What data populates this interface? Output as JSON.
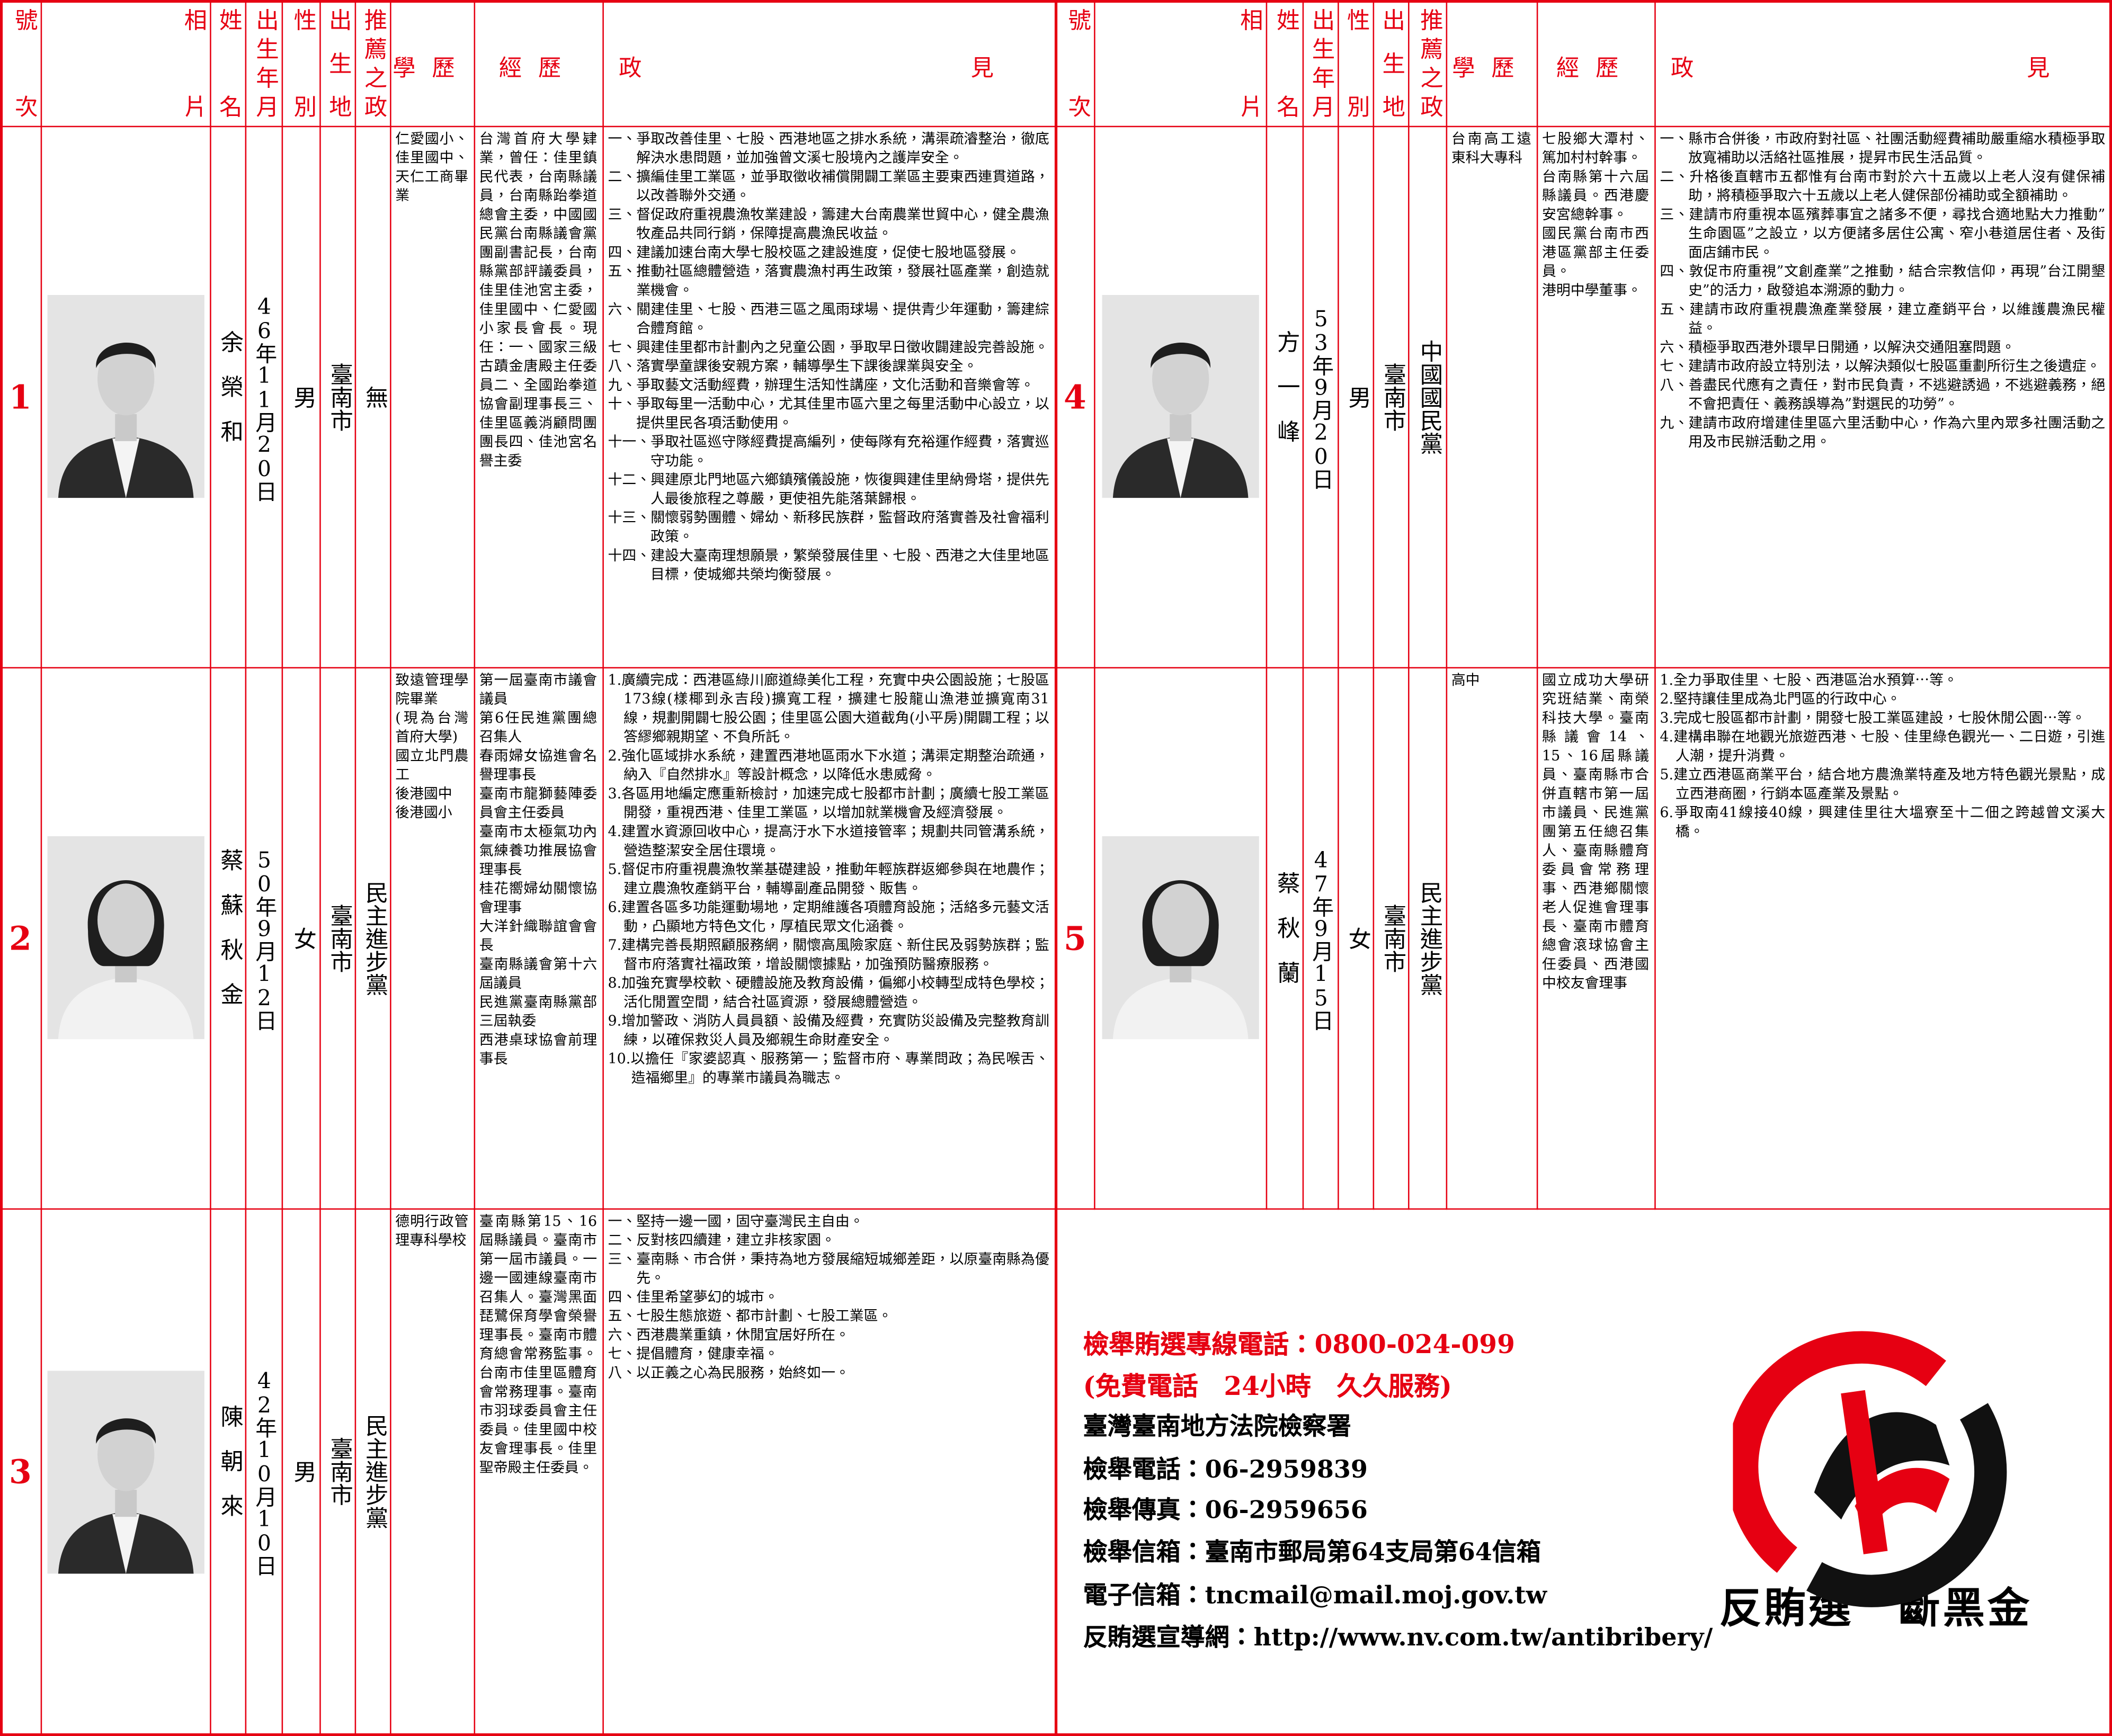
{
  "headers": [
    "號次",
    "相片",
    "姓名",
    "出生年月日",
    "性別",
    "出生地",
    "推薦之政黨",
    "學歷",
    "經歷",
    "政見"
  ],
  "candidates": [
    {
      "number": "1",
      "name": "余榮和",
      "birth": "46年11月20日",
      "gender": "男",
      "birthplace": "臺南市",
      "party": "無",
      "education": [
        "仁愛國小、佳里國中、天仁工商畢業"
      ],
      "experience": [
        "台灣首府大學肄業，曾任：佳里鎮民代表，台南縣議員，台南縣跆拳道總會主委，中國國民黨台南縣議會黨團副書記長，台南縣黨部評議委員，佳里佳池宮主委，佳里國中、仁愛國小家長會長。現任：一、國家三級古蹟金唐殿主任委員二、全國跆拳道協會副理事長三、佳里區義消顧問團團長四、佳池宮名譽主委"
      ],
      "platform": [
        "一、爭取改善佳里、七股、西港地區之排水系統，溝渠疏濬整治，徹底解決水患問題，並加強曾文溪七股境內之護岸安全。",
        "二、擴編佳里工業區，並爭取徵收補償開闢工業區主要東西連貫道路，以改善聯外交通。",
        "三、督促政府重視農漁牧業建設，籌建大台南農業世貿中心，健全農漁牧產品共同行銷，保障提高農漁民收益。",
        "四、建議加速台南大學七股校區之建設進度，促使七股地區發展。",
        "五、推動社區總體營造，落實農漁村再生政策，發展社區產業，創造就業機會。",
        "六、關建佳里、七股、西港三區之風雨球場、提供青少年運動，籌建綜合體育館。",
        "七、興建佳里都市計劃內之兒童公園，爭取早日徵收闢建設完善設施。",
        "八、落實學童課後安親方案，輔導學生下課後課業與安全。",
        "九、爭取藝文活動經費，辦理生活知性講座，文化活動和音樂會等。",
        "十、爭取每里一活動中心，尤其佳里市區六里之每里活動中心設立，以提供里民各項活動使用。",
        "十一、爭取社區巡守隊經費提高編列，使每隊有充裕運作經費，落實巡守功能。",
        "十二、興建原北門地區六鄉鎮殯儀設施，恢復興建佳里納骨塔，提供先人最後旅程之尊嚴，更使祖先能落葉歸根。",
        "十三、關懷弱勢團體、婦幼、新移民族群，監督政府落實善及社會福利政策。",
        "十四、建設大臺南理想願景，繁榮發展佳里、七股、西港之大佳里地區目標，使城鄉共榮均衡發展。"
      ]
    },
    {
      "number": "2",
      "name": "蔡蘇秋金",
      "birth": "50年9月12日",
      "gender": "女",
      "birthplace": "臺南市",
      "party": "民主進步黨",
      "education": [
        "致遠管理學院畢業",
        "(現為台灣首府大學)",
        "國立北門農工",
        "後港國中",
        "後港國小"
      ],
      "experience": [
        "第一屆臺南市議會議員",
        "第6任民進黨團總召集人",
        "春雨婦女協進會名譽理事長",
        "臺南市龍獅藝陣委員會主任委員",
        "臺南市太極氣功內氣練養功推展協會理事長",
        "桂花嚮婦幼關懷協會理事",
        "大洋針織聯誼會會長",
        "臺南縣議會第十六屆議員",
        "民進黨臺南縣黨部三屆執委",
        "西港桌球協會前理事長"
      ],
      "platform": [
        "1.廣續完成：西港區綠川廊道綠美化工程，充實中央公園設施；七股區173線(樣椰到永吉段)擴寬工程，擴建七股龍山漁港並擴寬南31線，規劃開闢七股公園；佳里區公園大道截角(小平房)開闢工程；以答繆鄉親期望、不負所託。",
        "2.強化區域排水系統，建置西港地區雨水下水道；溝渠定期整治疏通，納入『自然排水』等設計概念，以降低水患威脅。",
        "3.各區用地編定應重新檢討，加速完成七股都市計劃；廣續七股工業區開發，重視西港、佳里工業區，以增加就業機會及經濟發展。",
        "4.建置水資源回收中心，提高汙水下水道接管率；規劃共同管溝系統，營造整潔安全居住環境。",
        "5.督促市府重視農漁牧業基礎建設，推動年輕族群返鄉參與在地農作；建立農漁牧產銷平台，輔導副產品開發、販售。",
        "6.建置各區多功能運動場地，定期維護各項體育設施；活絡多元藝文活動，凸顯地方特色文化，厚植民眾文化涵養。",
        "7.建構完善長期照顧服務網，關懷高風險家庭、新住民及弱勢族群；監督市府落實社福政策，增設關懷據點，加強預防醫療服務。",
        "8.加強充實學校軟、硬體設施及教育設備，偏鄉小校轉型成特色學校；活化閒置空間，結合社區資源，發展總體營造。",
        "9.增加警政、消防人員員額、設備及經費，充實防災設備及完整教育訓練，以確保救災人員及鄉親生命財產安全。",
        "10.以擔任『家婆認真、服務第一；監督市府、專業問政；為民喉舌、造福鄉里』的專業市議員為職志。"
      ]
    },
    {
      "number": "3",
      "name": "陳朝來",
      "birth": "42年10月10日",
      "gender": "男",
      "birthplace": "臺南市",
      "party": "民主進步黨",
      "education": [
        "德明行政管理專科學校"
      ],
      "experience": [
        "臺南縣第15、16屆縣議員。臺南市第一屆市議員。一邊一國連線臺南市召集人。臺灣黑面琵鷺保育學會榮譽理事長。臺南市體育總會常務監事。台南市佳里區體育會常務理事。臺南市羽球委員會主任委員。佳里國中校友會理事長。佳里聖帝殿主任委員。"
      ],
      "platform": [
        "一、堅持一邊一國，固守臺灣民主自由。",
        "二、反對核四續建，建立非核家園。",
        "三、臺南縣、市合併，秉持為地方發展縮短城鄉差距，以原臺南縣為優先。",
        "四、佳里希望夢幻的城市。",
        "五、七股生態旅遊、都市計劃、七股工業區。",
        "六、西港農業重鎮，休閒宜居好所在。",
        "七、提倡體育，健康幸福。",
        "八、以正義之心為民服務，始終如一。"
      ]
    },
    {
      "number": "4",
      "name": "方一峰",
      "birth": "53年9月20日",
      "gender": "男",
      "birthplace": "臺南市",
      "party": "中國國民黨",
      "education": [
        "台南高工遠東科大專科"
      ],
      "experience": [
        "七股鄉大潭村、篤加村村幹事。",
        "台南縣第十六屆縣議員。西港慶安宮總幹事。",
        "國民黨台南市西港區黨部主任委員。",
        "港明中學董事。"
      ],
      "platform": [
        "一、縣市合併後，市政府對社區、社團活動經費補助嚴重縮水積極爭取放寬補助以活絡社區推展，提昇市民生活品質。",
        "二、升格後直轄市五都惟有台南市對於六十五歲以上老人沒有健保補助，將積極爭取六十五歲以上老人健保部份補助或全額補助。",
        "三、建請市府重視本區殯葬事宜之諸多不便，尋找合適地點大力推動”生命園區”之設立，以方便諸多居住公寓、窄小巷道居住者、及街面店鋪市民。",
        "四、敦促市府重視”文創產業”之推動，結合宗教信仰，再現”台江開墾史”的活力，啟發追本溯源的動力。",
        "五、建請市政府重視農漁產業發展，建立產銷平台，以維護農漁民權益。",
        "六、積極爭取西港外環早日開通，以解決交通阻塞問題。",
        "七、建請市政府設立特別法，以解決類似七股區重劃所衍生之後遺症。",
        "八、善盡民代應有之責任，對市民負責，不逃避誘過，不逃避義務，絕不會把責任、義務誤導為”對選民的功勞”。",
        "九、建請市政府增建佳里區六里活動中心，作為六里內眾多社團活動之用及市民辦活動之用。"
      ]
    },
    {
      "number": "5",
      "name": "蔡秋蘭",
      "birth": "47年9月15日",
      "gender": "女",
      "birthplace": "臺南市",
      "party": "民主進步黨",
      "education": [
        "高中"
      ],
      "experience": [
        "國立成功大學研究班結業、南榮科技大學。臺南縣議會14、15、16屆縣議員、臺南縣市合併直轄市第一屆市議員、民進黨團第五任總召集人、臺南縣體育委員會常務理事、西港鄉關懷老人促進會理事長、臺南市體育總會滾球協會主任委員、西港國中校友會理事"
      ],
      "platform": [
        "1.全力爭取佳里、七股、西港區治水預算⋯等。",
        "2.堅持讓佳里成為北門區的行政中心。",
        "3.完成七股區都市計劃，開發七股工業區建設，七股休閒公園⋯等。",
        "4.建構串聯在地觀光旅遊西港、七股、佳里綠色觀光一、二日遊，引進人潮，提升消費。",
        "5.建立西港區商業平台，結合地方農漁業特產及地方特色觀光景點，成立西港商圈，行銷本區產業及景點。",
        "6.爭取南41線接40線，興建佳里往大塭寮至十二佃之跨越曾文溪大橋。"
      ]
    }
  ],
  "notice": {
    "hotline": "檢舉賄選專線電話：0800-024-099",
    "hotline_note": "(免費電話　24小時　久久服務)",
    "lines": [
      "臺灣臺南地方法院檢察署",
      "檢舉電話：06-2959839",
      "檢舉傳真：06-2959656",
      "檢舉信箱：臺南市郵局第64支局第64信箱",
      "電子信箱：tncmail@mail.moj.gov.tw",
      "反賄選宣導網：http://www.nv.com.tw/antibribery/"
    ],
    "slogan": "反賄選　斷黑金"
  }
}
